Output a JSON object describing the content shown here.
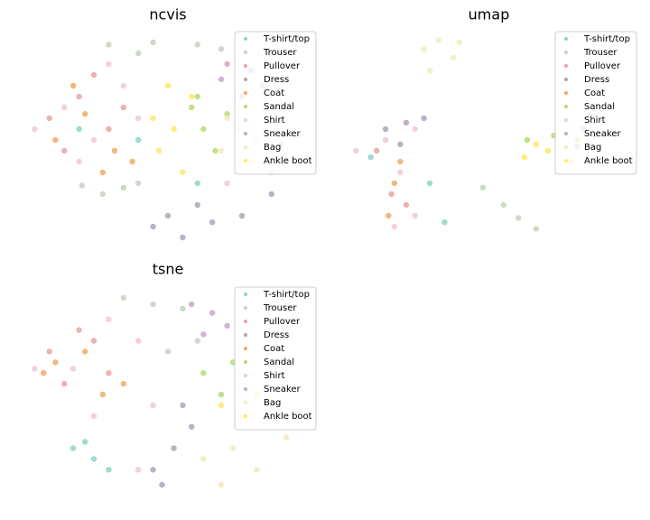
{
  "chart_data": [
    {
      "type": "scatter",
      "title": "ncvis",
      "xlim": [
        0,
        100
      ],
      "ylim": [
        0,
        100
      ],
      "legend": "upper right",
      "series": [
        {
          "name": "T-shirt/top",
          "color": "#8dd3c7",
          "x": [
            85,
            90,
            40,
            60,
            20,
            88
          ],
          "y": [
            45,
            40,
            50,
            30,
            55,
            48
          ]
        },
        {
          "name": "Trouser",
          "color": "#c5d3c0",
          "x": [
            30,
            45,
            60,
            68,
            40,
            21,
            35,
            28,
            40
          ],
          "y": [
            94,
            95,
            94,
            92,
            90,
            29,
            28,
            25,
            30
          ]
        },
        {
          "name": "Pullover",
          "color": "#e8a4a4",
          "x": [
            10,
            20,
            30,
            15,
            25,
            35
          ],
          "y": [
            60,
            70,
            55,
            45,
            80,
            65
          ]
        },
        {
          "name": "Dress",
          "color": "#b0a2b8",
          "x": [
            45,
            55,
            65,
            75,
            60,
            50,
            85
          ],
          "y": [
            10,
            5,
            12,
            15,
            20,
            15,
            25
          ]
        },
        {
          "name": "Coat",
          "color": "#f0aa66",
          "x": [
            12,
            22,
            32,
            18,
            38,
            28
          ],
          "y": [
            50,
            62,
            45,
            75,
            40,
            35
          ]
        },
        {
          "name": "Sandal",
          "color": "#b8dc70",
          "x": [
            58,
            62,
            66,
            60,
            70
          ],
          "y": [
            65,
            55,
            45,
            70,
            62
          ]
        },
        {
          "name": "Shirt",
          "color": "#f0c8d8",
          "x": [
            5,
            15,
            25,
            35,
            20,
            40,
            30,
            70,
            85
          ],
          "y": [
            55,
            65,
            50,
            75,
            40,
            60,
            85,
            30,
            35
          ]
        },
        {
          "name": "Sneaker",
          "color": "#c8a8c8",
          "x": [
            70,
            78,
            75,
            82,
            68
          ],
          "y": [
            85,
            82,
            70,
            75,
            78
          ]
        },
        {
          "name": "Bag",
          "color": "#f0ecb8",
          "x": [
            68,
            74,
            78,
            70,
            80
          ],
          "y": [
            45,
            55,
            40,
            60,
            50
          ]
        },
        {
          "name": "Ankle boot",
          "color": "#ffe868",
          "x": [
            50,
            45,
            47,
            55,
            58,
            52
          ],
          "y": [
            75,
            60,
            45,
            35,
            70,
            55
          ]
        }
      ]
    },
    {
      "type": "scatter",
      "title": "umap",
      "xlim": [
        0,
        100
      ],
      "ylim": [
        0,
        100
      ],
      "legend": "upper right",
      "series": [
        {
          "name": "T-shirt/top",
          "color": "#8dd3c7",
          "x": [
            10,
            30,
            35
          ],
          "y": [
            42,
            30,
            12
          ]
        },
        {
          "name": "Trouser",
          "color": "#c5d3c0",
          "x": [
            48,
            55,
            60,
            66
          ],
          "y": [
            28,
            20,
            14,
            9
          ]
        },
        {
          "name": "Pullover",
          "color": "#e8a4a4",
          "x": [
            12,
            17,
            22
          ],
          "y": [
            45,
            25,
            20
          ]
        },
        {
          "name": "Dress",
          "color": "#b0a2b8",
          "x": [
            15,
            22,
            28,
            20
          ],
          "y": [
            55,
            58,
            60,
            48
          ]
        },
        {
          "name": "Coat",
          "color": "#f0aa66",
          "x": [
            18,
            20,
            16
          ],
          "y": [
            30,
            40,
            15
          ]
        },
        {
          "name": "Sandal",
          "color": "#b8dc70",
          "x": [
            63,
            72,
            80
          ],
          "y": [
            50,
            52,
            50
          ]
        },
        {
          "name": "Shirt",
          "color": "#f0c8d8",
          "x": [
            5,
            15,
            25,
            20,
            25,
            18
          ],
          "y": [
            45,
            50,
            55,
            35,
            15,
            10
          ]
        },
        {
          "name": "Sneaker",
          "color": "#c8a8c8",
          "x": [
            82,
            86,
            80
          ],
          "y": [
            55,
            52,
            47
          ]
        },
        {
          "name": "Bag",
          "color": "#f0ecb8",
          "x": [
            28,
            33,
            38,
            30,
            40
          ],
          "y": [
            92,
            96,
            88,
            82,
            95
          ]
        },
        {
          "name": "Ankle boot",
          "color": "#ffe868",
          "x": [
            62,
            70,
            78,
            66
          ],
          "y": [
            42,
            45,
            40,
            48
          ]
        }
      ]
    },
    {
      "type": "scatter",
      "title": "tsne",
      "xlim": [
        0,
        100
      ],
      "ylim": [
        0,
        100
      ],
      "legend": "upper right",
      "series": [
        {
          "name": "T-shirt/top",
          "color": "#8dd3c7",
          "x": [
            18,
            25,
            30,
            22
          ],
          "y": [
            25,
            20,
            15,
            28
          ]
        },
        {
          "name": "Trouser",
          "color": "#c5d3c0",
          "x": [
            35,
            45,
            55,
            60,
            50
          ],
          "y": [
            95,
            92,
            90,
            75,
            70
          ]
        },
        {
          "name": "Pullover",
          "color": "#e8a4a4",
          "x": [
            10,
            20,
            30,
            15,
            25
          ],
          "y": [
            70,
            80,
            60,
            55,
            75
          ]
        },
        {
          "name": "Dress",
          "color": "#b0a2b8",
          "x": [
            45,
            52,
            58,
            48,
            55
          ],
          "y": [
            15,
            25,
            35,
            8,
            45
          ]
        },
        {
          "name": "Coat",
          "color": "#f0aa66",
          "x": [
            12,
            22,
            35,
            8,
            28
          ],
          "y": [
            65,
            70,
            55,
            60,
            50
          ]
        },
        {
          "name": "Sandal",
          "color": "#b8dc70",
          "x": [
            62,
            68,
            72
          ],
          "y": [
            60,
            50,
            65
          ]
        },
        {
          "name": "Shirt",
          "color": "#f0c8d8",
          "x": [
            5,
            18,
            40,
            25,
            45,
            30,
            40
          ],
          "y": [
            62,
            62,
            75,
            40,
            45,
            85,
            15
          ]
        },
        {
          "name": "Sneaker",
          "color": "#c8a8c8",
          "x": [
            58,
            65,
            62,
            70
          ],
          "y": [
            92,
            88,
            78,
            82
          ]
        },
        {
          "name": "Bag",
          "color": "#f0ecb8",
          "x": [
            62,
            72,
            80,
            90,
            68
          ],
          "y": [
            20,
            25,
            15,
            30,
            8
          ]
        },
        {
          "name": "Ankle boot",
          "color": "#ffe868",
          "x": [
            68,
            75,
            80
          ],
          "y": [
            45,
            40,
            50
          ]
        }
      ]
    }
  ]
}
